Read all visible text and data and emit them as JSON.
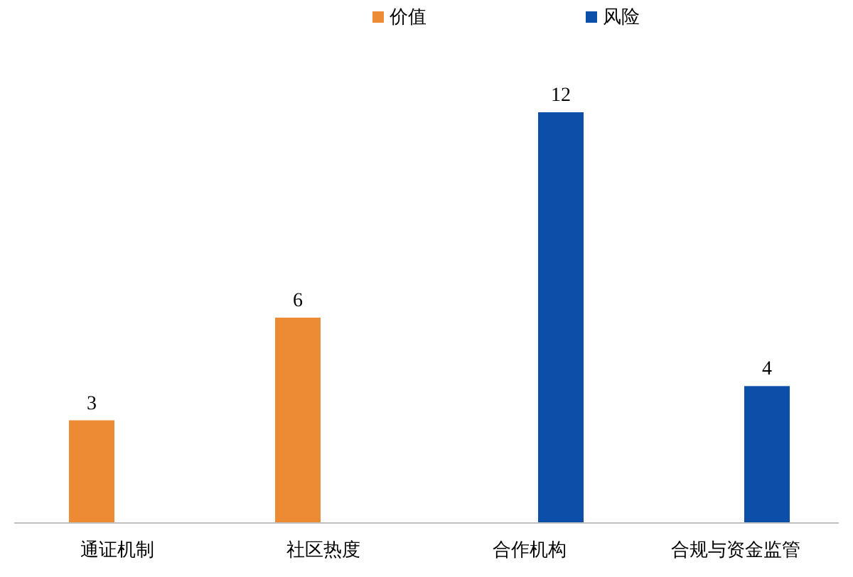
{
  "chart_data": {
    "type": "bar",
    "categories": [
      "通证机制",
      "社区热度",
      "合作机构",
      "合规与资金监管"
    ],
    "series": [
      {
        "name": "价值",
        "color": "#ed8b35",
        "values": [
          3,
          6,
          null,
          null
        ]
      },
      {
        "name": "风险",
        "color": "#0b4fa8",
        "values": [
          null,
          null,
          12,
          4
        ]
      }
    ],
    "data_labels": true,
    "legend": "top"
  }
}
